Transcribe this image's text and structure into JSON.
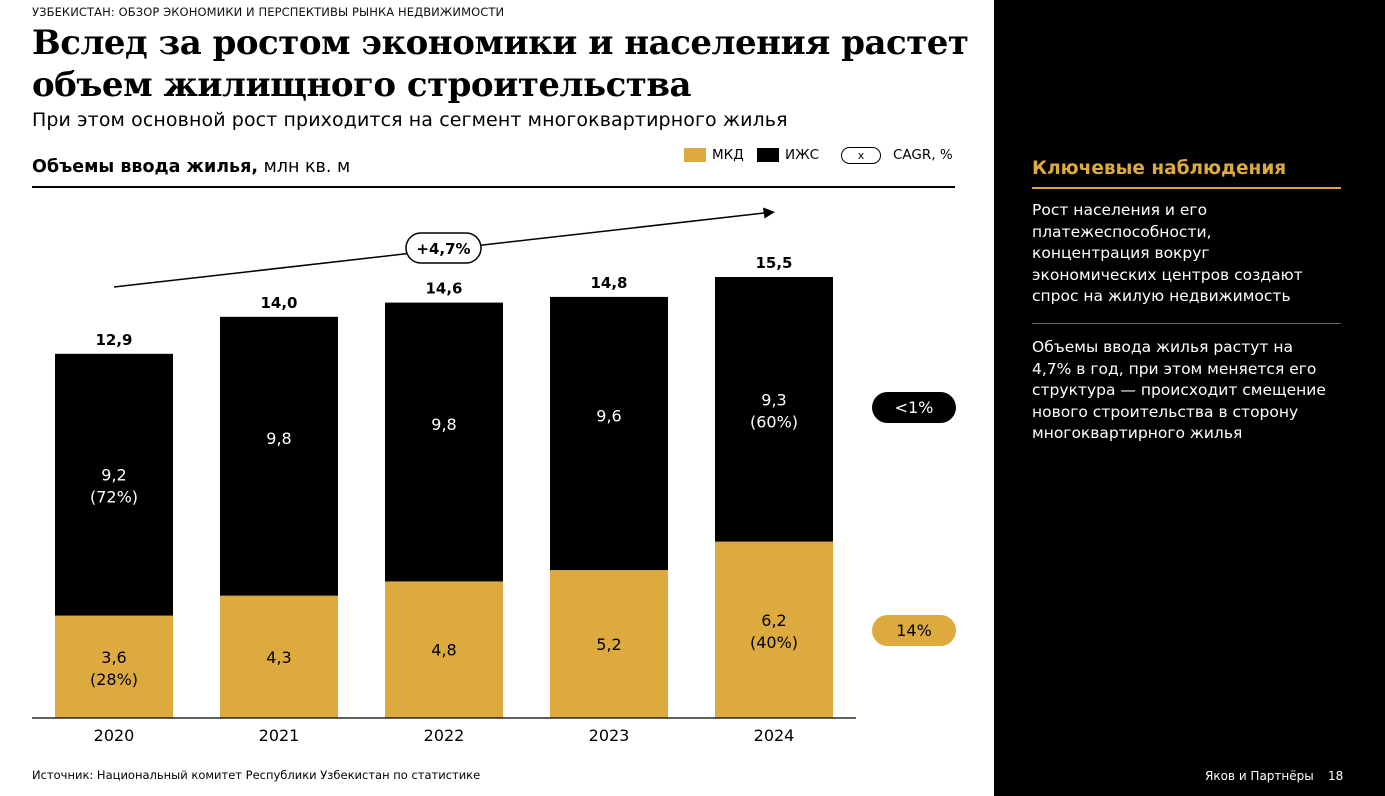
{
  "header": {
    "kicker": "УЗБЕКИСТАН: ОБЗОР ЭКОНОМИКИ И ПЕРСПЕКТИВЫ РЫНКА НЕДВИЖИМОСТИ",
    "title": "Вслед за ростом экономики и населения растет объем жилищного строительства",
    "subtitle": "При этом основной рост приходится на сегмент многоквартирного жилья"
  },
  "chart_header": {
    "title_bold": "Объемы ввода жилья,",
    "title_unit": " млн кв. м"
  },
  "legend": {
    "mkd": "МКД",
    "izhs": "ИЖС",
    "cagr_pill": "x",
    "cagr": "CAGR, %"
  },
  "chart_data": {
    "type": "bar",
    "stacked": true,
    "categories": [
      "2020",
      "2021",
      "2022",
      "2023",
      "2024"
    ],
    "series": [
      {
        "name": "МКД",
        "color": "#ddaa3f",
        "values": [
          3.6,
          4.3,
          4.8,
          5.2,
          6.2
        ],
        "labels": [
          "3,6",
          "4,3",
          "4,8",
          "5,2",
          "6,2"
        ],
        "share_labels": [
          "(28%)",
          "",
          "",
          "",
          "(40%)"
        ]
      },
      {
        "name": "ИЖС",
        "color": "#000000",
        "values": [
          9.2,
          9.8,
          9.8,
          9.6,
          9.3
        ],
        "labels": [
          "9,2",
          "9,8",
          "9,8",
          "9,6",
          "9,3"
        ],
        "share_labels": [
          "(72%)",
          "",
          "",
          "",
          "(60%)"
        ]
      }
    ],
    "totals": [
      12.9,
      14.0,
      14.6,
      14.8,
      15.5
    ],
    "total_labels": [
      "12,9",
      "14,0",
      "14,6",
      "14,8",
      "15,5"
    ],
    "overall_cagr": "+4,7%",
    "segment_cagr": [
      {
        "series": "ИЖС",
        "label": "<1%"
      },
      {
        "series": "МКД",
        "label": "14%"
      }
    ],
    "ylim": [
      0,
      15.5
    ],
    "grid": false
  },
  "source": "Источник: Национальный комитет Республики Узбекистан по статистике",
  "sidebar": {
    "title": "Ключевые наблюдения",
    "items": [
      "Рост населения и его платежеспособности, концентрация вокруг экономических центров создают спрос на жилую недвижимость",
      "Объемы ввода жилья растут на 4,7% в год, при этом меняется его структура — происходит смещение нового строительства в сторону многоквартирного жилья"
    ],
    "brand": "Яков и Партнёры",
    "page_number": "18"
  }
}
